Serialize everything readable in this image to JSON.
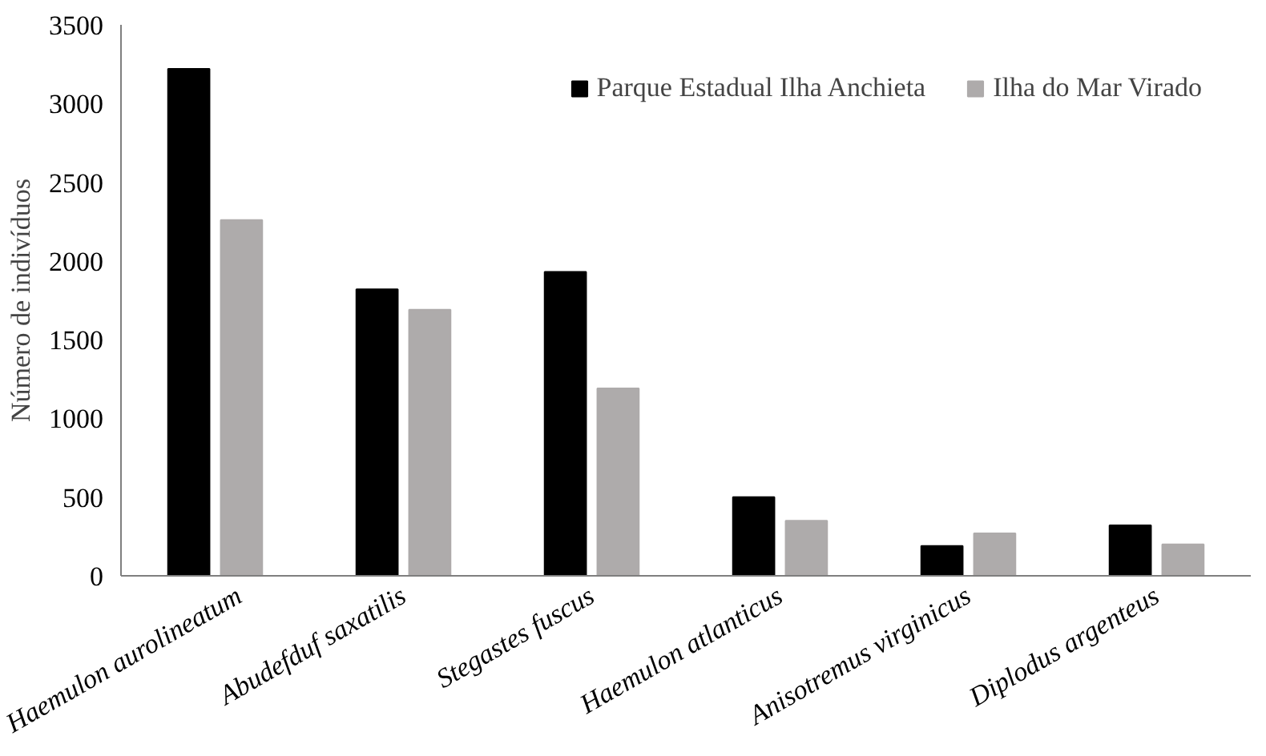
{
  "chart_data": {
    "type": "bar",
    "ylabel": "Número de indivíduos",
    "categories": [
      "Haemulon aurolineatum",
      "Abudefduf saxatilis",
      "Stegastes fuscus",
      "Haemulon atlanticus",
      "Anisotremus virginicus",
      "Diplodus argenteus"
    ],
    "series": [
      {
        "name": "Parque Estadual Ilha Anchieta",
        "color": "#000000",
        "values": [
          3220,
          1820,
          1930,
          500,
          190,
          320
        ]
      },
      {
        "name": "Ilha do Mar Virado",
        "color": "#aeabab",
        "values": [
          2260,
          1690,
          1190,
          350,
          270,
          200
        ]
      }
    ],
    "ylim": [
      0,
      3500
    ],
    "yticks": [
      0,
      500,
      1000,
      1500,
      2000,
      2500,
      3000,
      3500
    ],
    "grid": false,
    "legend": "top right"
  }
}
